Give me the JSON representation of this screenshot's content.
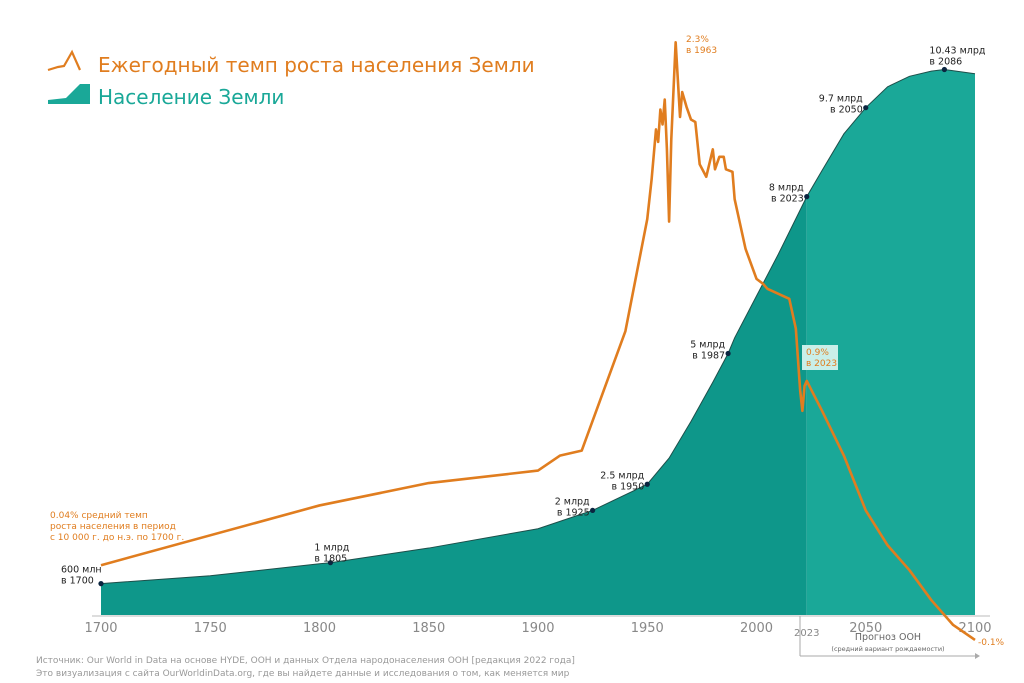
{
  "colors": {
    "growth": "#e07d1f",
    "population_hist": "#0e978a",
    "population_forecast": "#1aa898",
    "axis_text": "#888888"
  },
  "legend": [
    {
      "label": "Ежегодный темп роста населения Земли",
      "icon": "growth-line-icon"
    },
    {
      "label": "Население Земли",
      "icon": "population-area-icon"
    }
  ],
  "chart_data": {
    "type": "line+area",
    "x_ticks": [
      "1700",
      "1750",
      "1800",
      "1850",
      "1900",
      "1950",
      "2000",
      "2050",
      "2100"
    ],
    "x_extra_tick": "2023",
    "xlim": [
      1700,
      2100
    ],
    "grid": false,
    "legend_position": "top-left",
    "series": [
      {
        "name": "Население Земли",
        "type": "area",
        "unit": "млрд",
        "x": [
          1700,
          1750,
          1800,
          1805,
          1850,
          1900,
          1925,
          1950,
          1960,
          1970,
          1980,
          1987,
          1990,
          2000,
          2010,
          2023,
          2030,
          2040,
          2050,
          2060,
          2070,
          2080,
          2086,
          2100
        ],
        "y": [
          0.6,
          0.75,
          0.98,
          1.0,
          1.28,
          1.65,
          2.0,
          2.5,
          3.0,
          3.7,
          4.45,
          5.0,
          5.3,
          6.1,
          6.9,
          8.0,
          8.5,
          9.2,
          9.7,
          10.1,
          10.3,
          10.4,
          10.43,
          10.35
        ]
      },
      {
        "name": "Ежегодный темп роста населения Земли",
        "type": "line",
        "unit": "%",
        "x": [
          1700,
          1800,
          1850,
          1900,
          1910,
          1920,
          1940,
          1950,
          1952,
          1954,
          1955,
          1956,
          1957,
          1958,
          1959,
          1960,
          1961,
          1963,
          1965,
          1966,
          1968,
          1970,
          1972,
          1974,
          1977,
          1980,
          1981,
          1983,
          1985,
          1986,
          1989,
          1990,
          1995,
          2000,
          2003,
          2005,
          2010,
          2015,
          2018,
          2020,
          2021,
          2022,
          2023,
          2030,
          2040,
          2050,
          2060,
          2070,
          2080,
          2090,
          2100
        ],
        "y": [
          0.2,
          0.44,
          0.53,
          0.58,
          0.64,
          0.66,
          1.14,
          1.59,
          1.75,
          1.95,
          1.9,
          2.03,
          1.97,
          2.07,
          1.87,
          1.58,
          1.91,
          2.3,
          2.0,
          2.1,
          2.04,
          1.99,
          1.98,
          1.81,
          1.76,
          1.87,
          1.79,
          1.84,
          1.84,
          1.79,
          1.78,
          1.67,
          1.47,
          1.35,
          1.33,
          1.31,
          1.29,
          1.27,
          1.15,
          0.9,
          0.82,
          0.92,
          0.94,
          0.82,
          0.64,
          0.42,
          0.28,
          0.18,
          0.06,
          -0.04,
          -0.1
        ]
      }
    ],
    "population_annotations": [
      {
        "x": 1700,
        "y": 0.6,
        "line1": "600 млн",
        "line2": "в 1700"
      },
      {
        "x": 1805,
        "y": 1.0,
        "line1": "1 млрд",
        "line2": "в 1805"
      },
      {
        "x": 1925,
        "y": 2.0,
        "line1": "2 млрд",
        "line2": "в 1925"
      },
      {
        "x": 1950,
        "y": 2.5,
        "line1": "2.5 млрд",
        "line2": "в 1950"
      },
      {
        "x": 1987,
        "y": 5.0,
        "line1": "5 млрд",
        "line2": "в 1987"
      },
      {
        "x": 2023,
        "y": 8.0,
        "line1": "8 млрд",
        "line2": "в 2023"
      },
      {
        "x": 2050,
        "y": 9.7,
        "line1": "9.7 млрд",
        "line2": "в 2050"
      },
      {
        "x": 2086,
        "y": 10.43,
        "line1": "10.43 млрд",
        "line2": "в 2086"
      }
    ],
    "growth_annotations": {
      "peak": {
        "line1": "2.3%",
        "line2": "в 1963"
      },
      "current": {
        "line1": "0.9%",
        "line2": "в 2023"
      },
      "end": "-0.1%",
      "prehistoric": [
        "0.04% средний темп",
        "роста населения в период",
        "с 10 000 г. до н.э. по 1700 г."
      ]
    },
    "forecast": {
      "title": "Прогноз ООН",
      "subtitle": "(средний вариант рождаемости)",
      "start": 2023
    }
  },
  "source": [
    "Источник: Our World in Data на основе HYDE, ООН и данных Отдела народонаселения ООН [редакция 2022 года]",
    "Это визуализация с сайта OurWorldinData.org, где вы найдете данные и исследования о том, как меняется мир"
  ]
}
